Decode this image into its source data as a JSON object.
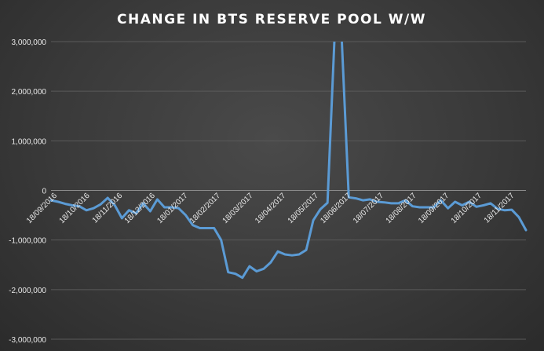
{
  "chart_data": {
    "type": "line",
    "title": "CHANGE IN BTS RESERVE POOL W/W",
    "xlabel": "",
    "ylabel": "",
    "ylim": [
      -3000000,
      3000000
    ],
    "yticks": [
      3000000,
      2000000,
      1000000,
      0,
      -1000000,
      -2000000,
      -3000000
    ],
    "ytick_labels": [
      "3,000,000",
      "2,000,000",
      "1,000,000",
      "0",
      "-1,000,000",
      "-2,000,000",
      "-3,000,000"
    ],
    "xtick_labels": [
      "18/09/2016",
      "18/10/2016",
      "18/11/2016",
      "18/12/2016",
      "18/01/2017",
      "18/02/2017",
      "18/03/2017",
      "18/04/2017",
      "18/05/2017",
      "18/06/2017",
      "18/07/2017",
      "18/08/2017",
      "18/09/2017",
      "18/10/2017",
      "18/11/2017"
    ],
    "grid": true,
    "series_color": "#5b9bd5",
    "series": [
      {
        "values": [
          -200000,
          -230000,
          -270000,
          -300000,
          -320000,
          -400000,
          -360000,
          -280000,
          -150000,
          -300000,
          -560000,
          -400000,
          -460000,
          -260000,
          -420000,
          -180000,
          -340000,
          -340000,
          -360000,
          -500000,
          -700000,
          -760000,
          -760000,
          -760000,
          -1000000,
          -1650000,
          -1680000,
          -1760000,
          -1530000,
          -1630000,
          -1580000,
          -1450000,
          -1230000,
          -1290000,
          -1310000,
          -1290000,
          -1200000,
          -600000,
          -380000,
          -250000,
          3100000,
          3100000,
          -140000,
          -160000,
          -200000,
          -180000,
          -230000,
          -240000,
          -260000,
          -260000,
          -200000,
          -320000,
          -340000,
          -340000,
          -340000,
          -200000,
          -360000,
          -230000,
          -300000,
          -230000,
          -330000,
          -300000,
          -260000,
          -370000,
          -400000,
          -390000,
          -540000,
          -800000
        ]
      }
    ]
  }
}
